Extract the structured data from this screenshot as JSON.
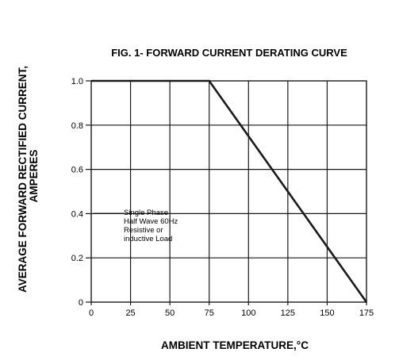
{
  "chart_data": {
    "type": "line",
    "title": "FIG. 1- FORWARD CURRENT DERATING CURVE",
    "xlabel": "AMBIENT TEMPERATURE,°C",
    "ylabel_lines": [
      "AVERAGE FORWARD RECTIFIED CURRENT,",
      "AMPERES"
    ],
    "xlim": [
      0,
      175
    ],
    "ylim": [
      0,
      1.0
    ],
    "x_ticks": [
      0,
      25,
      50,
      75,
      100,
      125,
      150,
      175
    ],
    "x_tick_labels": [
      "0",
      "25",
      "50",
      "75",
      "100",
      "125",
      "150",
      "175"
    ],
    "y_ticks": [
      0,
      0.2,
      0.4,
      0.6,
      0.8,
      1.0
    ],
    "y_tick_labels": [
      "0",
      "0.2",
      "0.4",
      "0.6",
      "0.8",
      "1.0"
    ],
    "grid": true,
    "series": [
      {
        "x": [
          0,
          75,
          175
        ],
        "y": [
          1.0,
          1.0,
          0
        ]
      }
    ],
    "annotation": [
      "Single Phase",
      "Half Wave 60Hz",
      "Resistive or",
      "inductive Load"
    ]
  }
}
